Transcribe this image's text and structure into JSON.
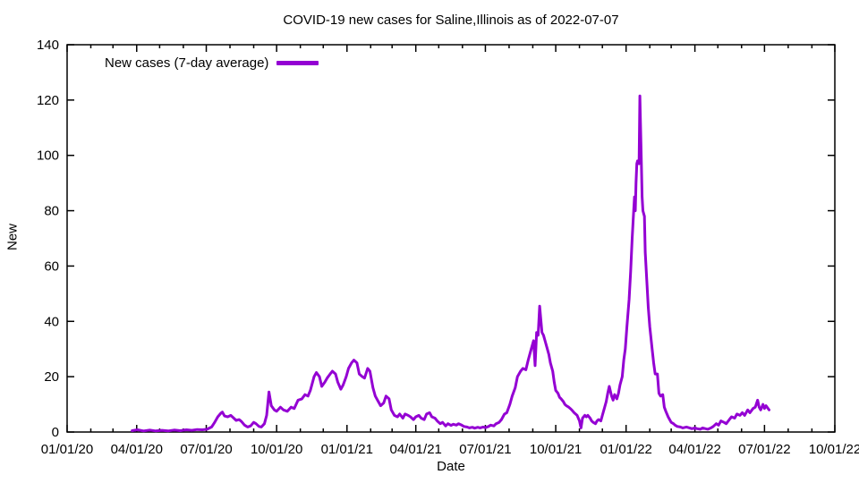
{
  "page": {
    "title": "COVID-19 new cases for Saline,Illinois as of 2022-07-07"
  },
  "legend": {
    "label": "New cases (7-day average)"
  },
  "axes": {
    "x_label": "Date",
    "y_label": "New"
  },
  "colors": {
    "line": "#9400D3",
    "border": "#000000",
    "text": "#000000",
    "background": "#ffffff"
  },
  "chart_data": {
    "type": "line",
    "title": "COVID-19 new cases for Saline,Illinois as of 2022-07-07",
    "xlabel": "Date",
    "ylabel": "New",
    "ylim": [
      0,
      140
    ],
    "x_domain": [
      "2020-01-01",
      "2022-10-01"
    ],
    "grid": false,
    "legend_position": "top-left",
    "line_color": "#9400D3",
    "y_ticks": [
      0,
      20,
      40,
      60,
      80,
      100,
      120,
      140
    ],
    "x_ticks": [
      {
        "date": "2020-01-01",
        "label": "01/01/20"
      },
      {
        "date": "2020-04-01",
        "label": "04/01/20"
      },
      {
        "date": "2020-07-01",
        "label": "07/01/20"
      },
      {
        "date": "2020-10-01",
        "label": "10/01/20"
      },
      {
        "date": "2021-01-01",
        "label": "01/01/21"
      },
      {
        "date": "2021-04-01",
        "label": "04/01/21"
      },
      {
        "date": "2021-07-01",
        "label": "07/01/21"
      },
      {
        "date": "2021-10-01",
        "label": "10/01/21"
      },
      {
        "date": "2022-01-01",
        "label": "01/01/22"
      },
      {
        "date": "2022-04-01",
        "label": "04/01/22"
      },
      {
        "date": "2022-07-01",
        "label": "07/01/22"
      },
      {
        "date": "2022-10-01",
        "label": "10/01/22"
      }
    ],
    "series": [
      {
        "name": "New cases (7-day average)",
        "color": "#9400D3",
        "points": [
          [
            "2020-03-26",
            0.5
          ],
          [
            "2020-04-02",
            0.8
          ],
          [
            "2020-04-10",
            0.4
          ],
          [
            "2020-04-18",
            0.7
          ],
          [
            "2020-04-26",
            0.4
          ],
          [
            "2020-05-04",
            0.6
          ],
          [
            "2020-05-12",
            0.4
          ],
          [
            "2020-05-20",
            0.7
          ],
          [
            "2020-05-28",
            0.5
          ],
          [
            "2020-06-05",
            0.8
          ],
          [
            "2020-06-12",
            0.6
          ],
          [
            "2020-06-19",
            0.9
          ],
          [
            "2020-06-26",
            0.8
          ],
          [
            "2020-07-02",
            1.0
          ],
          [
            "2020-07-08",
            1.8
          ],
          [
            "2020-07-12",
            3.5
          ],
          [
            "2020-07-16",
            5.5
          ],
          [
            "2020-07-20",
            6.8
          ],
          [
            "2020-07-22",
            7.2
          ],
          [
            "2020-07-25",
            5.8
          ],
          [
            "2020-07-29",
            5.5
          ],
          [
            "2020-08-02",
            6.0
          ],
          [
            "2020-08-06",
            5.0
          ],
          [
            "2020-08-09",
            4.2
          ],
          [
            "2020-08-13",
            4.5
          ],
          [
            "2020-08-16",
            3.8
          ],
          [
            "2020-08-20",
            2.5
          ],
          [
            "2020-08-24",
            1.8
          ],
          [
            "2020-08-28",
            2.2
          ],
          [
            "2020-09-01",
            3.5
          ],
          [
            "2020-09-04",
            3.0
          ],
          [
            "2020-09-08",
            2.0
          ],
          [
            "2020-09-11",
            1.8
          ],
          [
            "2020-09-15",
            3.0
          ],
          [
            "2020-09-18",
            6.0
          ],
          [
            "2020-09-21",
            14.5
          ],
          [
            "2020-09-24",
            9.5
          ],
          [
            "2020-09-28",
            8.0
          ],
          [
            "2020-10-01",
            7.5
          ],
          [
            "2020-10-06",
            9.0
          ],
          [
            "2020-10-10",
            8.0
          ],
          [
            "2020-10-15",
            7.5
          ],
          [
            "2020-10-20",
            9.0
          ],
          [
            "2020-10-24",
            8.5
          ],
          [
            "2020-10-29",
            11.5
          ],
          [
            "2020-11-03",
            12.0
          ],
          [
            "2020-11-07",
            13.5
          ],
          [
            "2020-11-11",
            13.0
          ],
          [
            "2020-11-14",
            15.0
          ],
          [
            "2020-11-19",
            20.0
          ],
          [
            "2020-11-22",
            21.5
          ],
          [
            "2020-11-26",
            20.0
          ],
          [
            "2020-11-29",
            16.5
          ],
          [
            "2020-12-03",
            18.0
          ],
          [
            "2020-12-06",
            19.5
          ],
          [
            "2020-12-10",
            21.0
          ],
          [
            "2020-12-13",
            22.0
          ],
          [
            "2020-12-17",
            21.0
          ],
          [
            "2020-12-20",
            18.0
          ],
          [
            "2020-12-24",
            15.5
          ],
          [
            "2020-12-27",
            17.0
          ],
          [
            "2020-12-31",
            20.0
          ],
          [
            "2021-01-03",
            23.0
          ],
          [
            "2021-01-07",
            25.0
          ],
          [
            "2021-01-10",
            26.0
          ],
          [
            "2021-01-14",
            25.0
          ],
          [
            "2021-01-17",
            21.0
          ],
          [
            "2021-01-21",
            20.0
          ],
          [
            "2021-01-24",
            19.5
          ],
          [
            "2021-01-28",
            23.0
          ],
          [
            "2021-01-31",
            22.0
          ],
          [
            "2021-02-04",
            16.0
          ],
          [
            "2021-02-07",
            13.0
          ],
          [
            "2021-02-11",
            11.0
          ],
          [
            "2021-02-14",
            9.5
          ],
          [
            "2021-02-18",
            10.5
          ],
          [
            "2021-02-21",
            13.0
          ],
          [
            "2021-02-25",
            12.0
          ],
          [
            "2021-02-28",
            8.0
          ],
          [
            "2021-03-04",
            6.0
          ],
          [
            "2021-03-08",
            5.5
          ],
          [
            "2021-03-11",
            6.5
          ],
          [
            "2021-03-15",
            5.0
          ],
          [
            "2021-03-18",
            6.5
          ],
          [
            "2021-03-22",
            6.0
          ],
          [
            "2021-03-25",
            5.5
          ],
          [
            "2021-03-29",
            4.5
          ],
          [
            "2021-04-01",
            5.5
          ],
          [
            "2021-04-05",
            6.0
          ],
          [
            "2021-04-08",
            5.0
          ],
          [
            "2021-04-12",
            4.5
          ],
          [
            "2021-04-15",
            6.5
          ],
          [
            "2021-04-19",
            7.0
          ],
          [
            "2021-04-22",
            5.5
          ],
          [
            "2021-04-26",
            5.0
          ],
          [
            "2021-04-29",
            4.0
          ],
          [
            "2021-05-03",
            3.0
          ],
          [
            "2021-05-06",
            3.5
          ],
          [
            "2021-05-10",
            2.2
          ],
          [
            "2021-05-13",
            3.0
          ],
          [
            "2021-05-17",
            2.4
          ],
          [
            "2021-05-20",
            2.8
          ],
          [
            "2021-05-24",
            2.5
          ],
          [
            "2021-05-27",
            3.0
          ],
          [
            "2021-05-31",
            2.5
          ],
          [
            "2021-06-03",
            2.0
          ],
          [
            "2021-06-07",
            1.8
          ],
          [
            "2021-06-10",
            1.5
          ],
          [
            "2021-06-14",
            1.7
          ],
          [
            "2021-06-17",
            1.4
          ],
          [
            "2021-06-21",
            1.7
          ],
          [
            "2021-06-24",
            1.5
          ],
          [
            "2021-06-28",
            1.8
          ],
          [
            "2021-07-01",
            1.6
          ],
          [
            "2021-07-05",
            2.0
          ],
          [
            "2021-07-08",
            2.5
          ],
          [
            "2021-07-12",
            2.2
          ],
          [
            "2021-07-15",
            3.0
          ],
          [
            "2021-07-19",
            3.5
          ],
          [
            "2021-07-22",
            4.5
          ],
          [
            "2021-07-26",
            6.5
          ],
          [
            "2021-07-29",
            7.0
          ],
          [
            "2021-08-02",
            10.0
          ],
          [
            "2021-08-05",
            13.0
          ],
          [
            "2021-08-09",
            16.0
          ],
          [
            "2021-08-12",
            20.0
          ],
          [
            "2021-08-16",
            22.0
          ],
          [
            "2021-08-19",
            23.0
          ],
          [
            "2021-08-23",
            22.5
          ],
          [
            "2021-08-26",
            26.0
          ],
          [
            "2021-08-30",
            30.0
          ],
          [
            "2021-09-02",
            33.0
          ],
          [
            "2021-09-04",
            24.0
          ],
          [
            "2021-09-06",
            36.0
          ],
          [
            "2021-09-08",
            35.0
          ],
          [
            "2021-09-10",
            45.5
          ],
          [
            "2021-09-13",
            36.0
          ],
          [
            "2021-09-15",
            35.0
          ],
          [
            "2021-09-17",
            33.0
          ],
          [
            "2021-09-20",
            30.0
          ],
          [
            "2021-09-22",
            28.0
          ],
          [
            "2021-09-24",
            25.0
          ],
          [
            "2021-09-27",
            22.0
          ],
          [
            "2021-09-29",
            18.0
          ],
          [
            "2021-10-01",
            15.0
          ],
          [
            "2021-10-04",
            14.0
          ],
          [
            "2021-10-06",
            12.5
          ],
          [
            "2021-10-08",
            12.0
          ],
          [
            "2021-10-11",
            11.0
          ],
          [
            "2021-10-13",
            10.0
          ],
          [
            "2021-10-15",
            9.5
          ],
          [
            "2021-10-18",
            9.0
          ],
          [
            "2021-10-20",
            8.5
          ],
          [
            "2021-10-22",
            8.0
          ],
          [
            "2021-10-25",
            7.0
          ],
          [
            "2021-10-27",
            6.5
          ],
          [
            "2021-10-29",
            6.0
          ],
          [
            "2021-11-01",
            4.0
          ],
          [
            "2021-11-03",
            1.5
          ],
          [
            "2021-11-05",
            5.0
          ],
          [
            "2021-11-08",
            6.0
          ],
          [
            "2021-11-10",
            5.5
          ],
          [
            "2021-11-12",
            6.0
          ],
          [
            "2021-11-15",
            5.0
          ],
          [
            "2021-11-17",
            4.0
          ],
          [
            "2021-11-19",
            3.5
          ],
          [
            "2021-11-22",
            3.0
          ],
          [
            "2021-11-24",
            4.0
          ],
          [
            "2021-11-26",
            4.5
          ],
          [
            "2021-11-29",
            4.0
          ],
          [
            "2021-12-01",
            6.0
          ],
          [
            "2021-12-03",
            8.0
          ],
          [
            "2021-12-06",
            11.0
          ],
          [
            "2021-12-08",
            14.0
          ],
          [
            "2021-12-10",
            16.5
          ],
          [
            "2021-12-13",
            13.0
          ],
          [
            "2021-12-15",
            11.5
          ],
          [
            "2021-12-17",
            13.5
          ],
          [
            "2021-12-20",
            12.0
          ],
          [
            "2021-12-22",
            14.0
          ],
          [
            "2021-12-24",
            17.0
          ],
          [
            "2021-12-27",
            20.0
          ],
          [
            "2021-12-29",
            26.0
          ],
          [
            "2021-12-31",
            30.0
          ],
          [
            "2022-01-02",
            38.0
          ],
          [
            "2022-01-05",
            48.0
          ],
          [
            "2022-01-07",
            58.0
          ],
          [
            "2022-01-09",
            70.0
          ],
          [
            "2022-01-11",
            80.0
          ],
          [
            "2022-01-12",
            85.0
          ],
          [
            "2022-01-13",
            80.0
          ],
          [
            "2022-01-14",
            90.0
          ],
          [
            "2022-01-15",
            97.0
          ],
          [
            "2022-01-16",
            98.0
          ],
          [
            "2022-01-18",
            97.0
          ],
          [
            "2022-01-19",
            121.5
          ],
          [
            "2022-01-20",
            110.0
          ],
          [
            "2022-01-21",
            97.0
          ],
          [
            "2022-01-22",
            85.0
          ],
          [
            "2022-01-23",
            80.0
          ],
          [
            "2022-01-25",
            78.0
          ],
          [
            "2022-01-26",
            65.0
          ],
          [
            "2022-01-28",
            55.0
          ],
          [
            "2022-01-30",
            45.0
          ],
          [
            "2022-02-01",
            38.0
          ],
          [
            "2022-02-04",
            30.0
          ],
          [
            "2022-02-06",
            25.0
          ],
          [
            "2022-02-08",
            21.0
          ],
          [
            "2022-02-11",
            21.0
          ],
          [
            "2022-02-13",
            14.0
          ],
          [
            "2022-02-15",
            13.0
          ],
          [
            "2022-02-18",
            13.5
          ],
          [
            "2022-02-20",
            9.0
          ],
          [
            "2022-02-22",
            7.5
          ],
          [
            "2022-02-25",
            5.5
          ],
          [
            "2022-02-27",
            4.5
          ],
          [
            "2022-03-01",
            3.5
          ],
          [
            "2022-03-04",
            3.0
          ],
          [
            "2022-03-06",
            2.5
          ],
          [
            "2022-03-09",
            2.0
          ],
          [
            "2022-03-13",
            1.8
          ],
          [
            "2022-03-16",
            1.5
          ],
          [
            "2022-03-21",
            1.8
          ],
          [
            "2022-03-25",
            1.5
          ],
          [
            "2022-03-28",
            1.2
          ],
          [
            "2022-04-01",
            1.5
          ],
          [
            "2022-04-04",
            1.2
          ],
          [
            "2022-04-08",
            1.0
          ],
          [
            "2022-04-11",
            1.5
          ],
          [
            "2022-04-15",
            1.2
          ],
          [
            "2022-04-18",
            1.0
          ],
          [
            "2022-04-22",
            1.5
          ],
          [
            "2022-04-25",
            2.0
          ],
          [
            "2022-04-29",
            3.0
          ],
          [
            "2022-05-02",
            2.5
          ],
          [
            "2022-05-05",
            4.0
          ],
          [
            "2022-05-09",
            3.5
          ],
          [
            "2022-05-12",
            3.0
          ],
          [
            "2022-05-16",
            4.5
          ],
          [
            "2022-05-19",
            5.5
          ],
          [
            "2022-05-23",
            5.0
          ],
          [
            "2022-05-26",
            6.5
          ],
          [
            "2022-05-30",
            6.0
          ],
          [
            "2022-06-02",
            7.0
          ],
          [
            "2022-06-05",
            6.0
          ],
          [
            "2022-06-09",
            8.0
          ],
          [
            "2022-06-12",
            7.0
          ],
          [
            "2022-06-16",
            8.5
          ],
          [
            "2022-06-19",
            9.0
          ],
          [
            "2022-06-22",
            11.5
          ],
          [
            "2022-06-24",
            9.0
          ],
          [
            "2022-06-26",
            8.0
          ],
          [
            "2022-06-29",
            10.0
          ],
          [
            "2022-07-01",
            8.5
          ],
          [
            "2022-07-03",
            9.5
          ],
          [
            "2022-07-07",
            8.0
          ]
        ]
      }
    ]
  }
}
